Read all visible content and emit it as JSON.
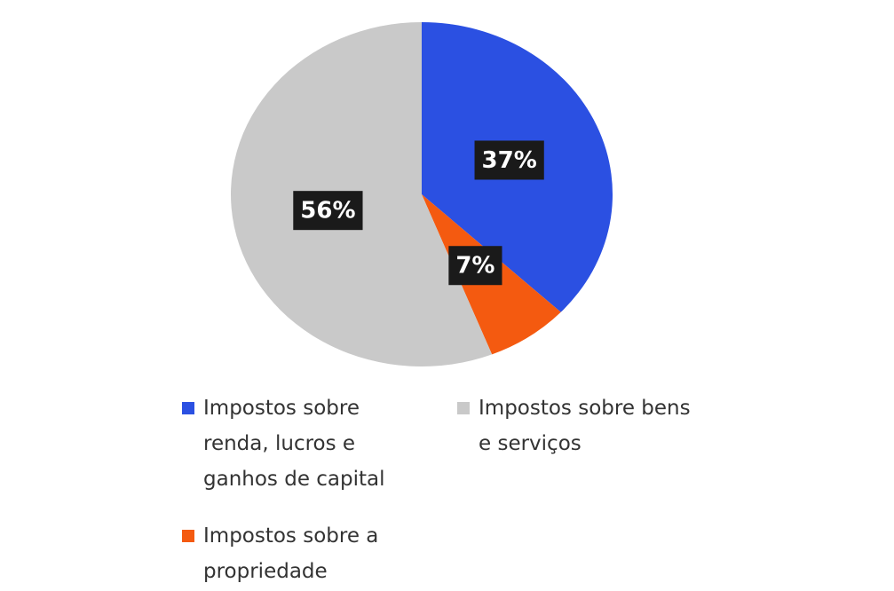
{
  "chart_data": {
    "type": "pie",
    "categories": [
      "Impostos sobre renda, lucros e ganhos de capital",
      "Impostos sobre a propriedade",
      "Impostos sobre bens e serviços"
    ],
    "values": [
      37,
      7,
      56
    ],
    "value_labels": [
      "37%",
      "7%",
      "56%"
    ],
    "colors": [
      "#2b50e2",
      "#f45a10",
      "#c9c9c9"
    ],
    "legend": "bottom"
  }
}
